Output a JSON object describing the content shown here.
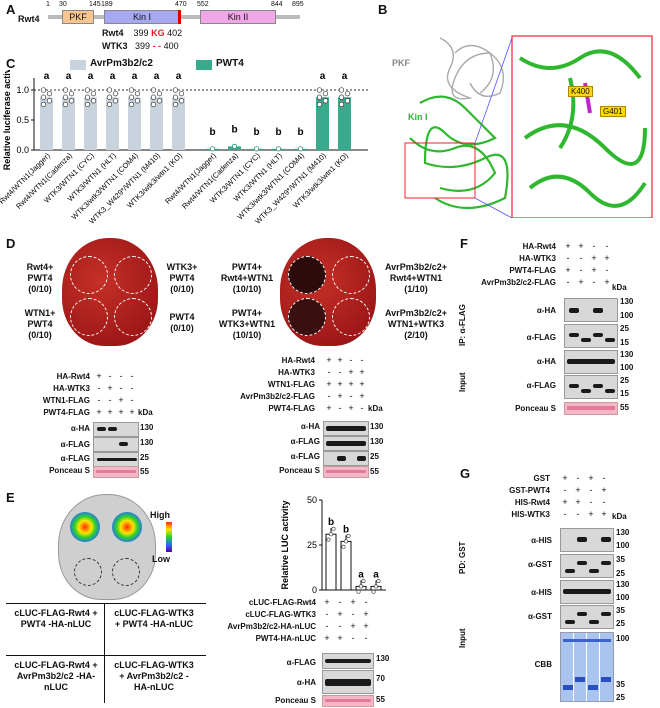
{
  "panels": {
    "A": "A",
    "B": "B",
    "C": "C",
    "D": "D",
    "E": "E",
    "F": "F",
    "G": "G"
  },
  "panelA": {
    "protein": "Rwt4",
    "ticks": [
      "1",
      "30",
      "145",
      "189",
      "470",
      "552",
      "844",
      "895"
    ],
    "domains": [
      "PKF",
      "Kin I",
      "Kin II"
    ],
    "align_rwt4": {
      "name": "Rwt4",
      "start": "399",
      "motif": "KG",
      "end": "402"
    },
    "align_wtk3": {
      "name": "WTK3",
      "start": "399",
      "motif": "- -",
      "end": "400"
    }
  },
  "panelB": {
    "labels": [
      "PKF",
      "Kin I",
      "K400",
      "G401"
    ]
  },
  "chart_data": {
    "type": "bar",
    "ylabel": "Relative luciferase activity",
    "ylim": [
      0,
      1.2
    ],
    "yticks": [
      "0.0",
      "0.5",
      "1.0"
    ],
    "legend": [
      "AvrPm3b2/c2",
      "PWT4"
    ],
    "colors": {
      "AvrPm3b2/c2": "#c9d3dd",
      "PWT4": "#3aaa8e"
    },
    "categories": [
      "Rwt4/WTN1(Jagger)",
      "Rwt4/WTN1(Cadenza)",
      "WTK3/WTN1 (CYC)",
      "WTK3/WTN1 (HLT)",
      "WTK3/wtk3/WTN1 (COM4)",
      "WTK3_W429*/WTN1 (M410)",
      "WTK3/wtk3/wtn1 (KO)"
    ],
    "series": [
      {
        "name": "AvrPm3b2/c2",
        "values": [
          0.88,
          0.88,
          0.88,
          0.88,
          0.88,
          0.88,
          0.88
        ],
        "letters": [
          "a",
          "a",
          "a",
          "a",
          "a",
          "a",
          "a"
        ]
      },
      {
        "name": "PWT4",
        "values": [
          0.02,
          0.06,
          0.02,
          0.02,
          0.02,
          0.88,
          0.88
        ],
        "letters": [
          "b",
          "b",
          "b",
          "b",
          "b",
          "a",
          "a"
        ]
      }
    ]
  },
  "panelD": {
    "leaf1": {
      "tl": [
        "Rwt4+",
        "PWT4",
        "(0/10)"
      ],
      "tr": [
        "WTK3+",
        "PWT4",
        "(0/10)"
      ],
      "bl": [
        "WTN1+",
        "PWT4",
        "(0/10)"
      ],
      "br": [
        "PWT4",
        "(0/10)"
      ]
    },
    "leaf2": {
      "tl": [
        "PWT4+",
        "Rwt4+WTN1",
        "(10/10)"
      ],
      "tr": [
        "AvrPm3b2/c2+",
        "Rwt4+WTN1",
        "(1/10)"
      ],
      "bl": [
        "PWT4+",
        "WTK3+WTN1",
        "(10/10)"
      ],
      "br": [
        "AvrPm3b2/c2+",
        "WTN1+WTK3",
        "(2/10)"
      ]
    },
    "blot1": {
      "rows": [
        "HA-Rwt4",
        "HA-WTK3",
        "WTN1-FLAG",
        "PWT4-FLAG"
      ],
      "signs": [
        [
          "+",
          "-",
          "-",
          "-"
        ],
        [
          "-",
          "+",
          "-",
          "-"
        ],
        [
          "-",
          "-",
          "+",
          "-"
        ],
        [
          "+",
          "+",
          "+",
          "+"
        ]
      ],
      "probes": [
        "α-HA",
        "α-FLAG",
        "α-FLAG",
        "Ponceau S"
      ],
      "kda": [
        "130",
        "130",
        "25",
        "55"
      ]
    },
    "blot2": {
      "rows": [
        "HA-Rwt4",
        "HA-WTK3",
        "WTN1-FLAG",
        "AvrPm3b2/c2-FLAG",
        "PWT4-FLAG"
      ],
      "signs": [
        [
          "+",
          "+",
          "-",
          "-"
        ],
        [
          "-",
          "-",
          "+",
          "+"
        ],
        [
          "+",
          "+",
          "+",
          "+"
        ],
        [
          "-",
          "+",
          "-",
          "+"
        ],
        [
          "+",
          "-",
          "+",
          "-"
        ]
      ],
      "probes": [
        "α-HA",
        "α-FLAG",
        "α-FLAG",
        "Ponceau S"
      ],
      "kda": [
        "130",
        "130",
        "25",
        "55"
      ]
    },
    "kda_label": "kDa"
  },
  "panelE": {
    "scale": [
      "High",
      "Low"
    ],
    "table": [
      "cLUC-FLAG-Rwt4 + PWT4 -HA-nLUC",
      "cLUC-FLAG-WTK3 + PWT4 -HA-nLUC",
      "cLUC-FLAG-Rwt4 + AvrPm3b2/c2 -HA-nLUC",
      "cLUC-FLAG-WTK3 + AvrPm3b2/c2 -HA-nLUC"
    ],
    "bar": {
      "ylabel": "Relative LUC activity",
      "yticks": [
        "0",
        "25",
        "50"
      ],
      "values": [
        31,
        27,
        2,
        2
      ],
      "letters": [
        "b",
        "b",
        "a",
        "a"
      ]
    },
    "rows": [
      "cLUC-FLAG-Rwt4",
      "cLUC-FLAG-WTK3",
      "AvrPm3b2/c2-HA-nLUC",
      "PWT4-HA-nLUC"
    ],
    "signs": [
      [
        "+",
        "-",
        "+",
        "-"
      ],
      [
        "-",
        "+",
        "-",
        "+"
      ],
      [
        "-",
        "-",
        "+",
        "+"
      ],
      [
        "+",
        "+",
        "-",
        "-"
      ]
    ],
    "probes": [
      "α-FLAG",
      "α-HA",
      "Ponceau S"
    ],
    "kda": [
      "130",
      "70",
      "55"
    ]
  },
  "panelF": {
    "rows": [
      "HA-Rwt4",
      "HA-WTK3",
      "PWT4-FLAG",
      "AvrPm3b2/c2-FLAG"
    ],
    "signs": [
      [
        "+",
        "+",
        "-",
        "-"
      ],
      [
        "-",
        "-",
        "+",
        "+"
      ],
      [
        "+",
        "-",
        "+",
        "-"
      ],
      [
        "-",
        "+",
        "-",
        "+"
      ]
    ],
    "ip": "IP: α-FLAG",
    "input": "Input",
    "probes": [
      "α-HA",
      "α-FLAG",
      "α-HA",
      "α-FLAG",
      "Ponceau S"
    ],
    "kda": [
      "130",
      "100",
      "25",
      "15",
      "130",
      "100",
      "25",
      "15",
      "55"
    ]
  },
  "panelG": {
    "rows": [
      "GST",
      "GST-PWT4",
      "HIS-Rwt4",
      "HIS-WTK3"
    ],
    "signs": [
      [
        "+",
        "-",
        "+",
        "-"
      ],
      [
        "-",
        "+",
        "-",
        "+"
      ],
      [
        "+",
        "+",
        "-",
        "-"
      ],
      [
        "-",
        "-",
        "+",
        "+"
      ]
    ],
    "pd": "PD: GST",
    "input": "Input",
    "probes": [
      "α-HIS",
      "α-GST",
      "α-HIS",
      "α-GST",
      "CBB"
    ],
    "kda": [
      "130",
      "100",
      "35",
      "25",
      "130",
      "100",
      "35",
      "25",
      "100",
      "35",
      "25"
    ]
  }
}
